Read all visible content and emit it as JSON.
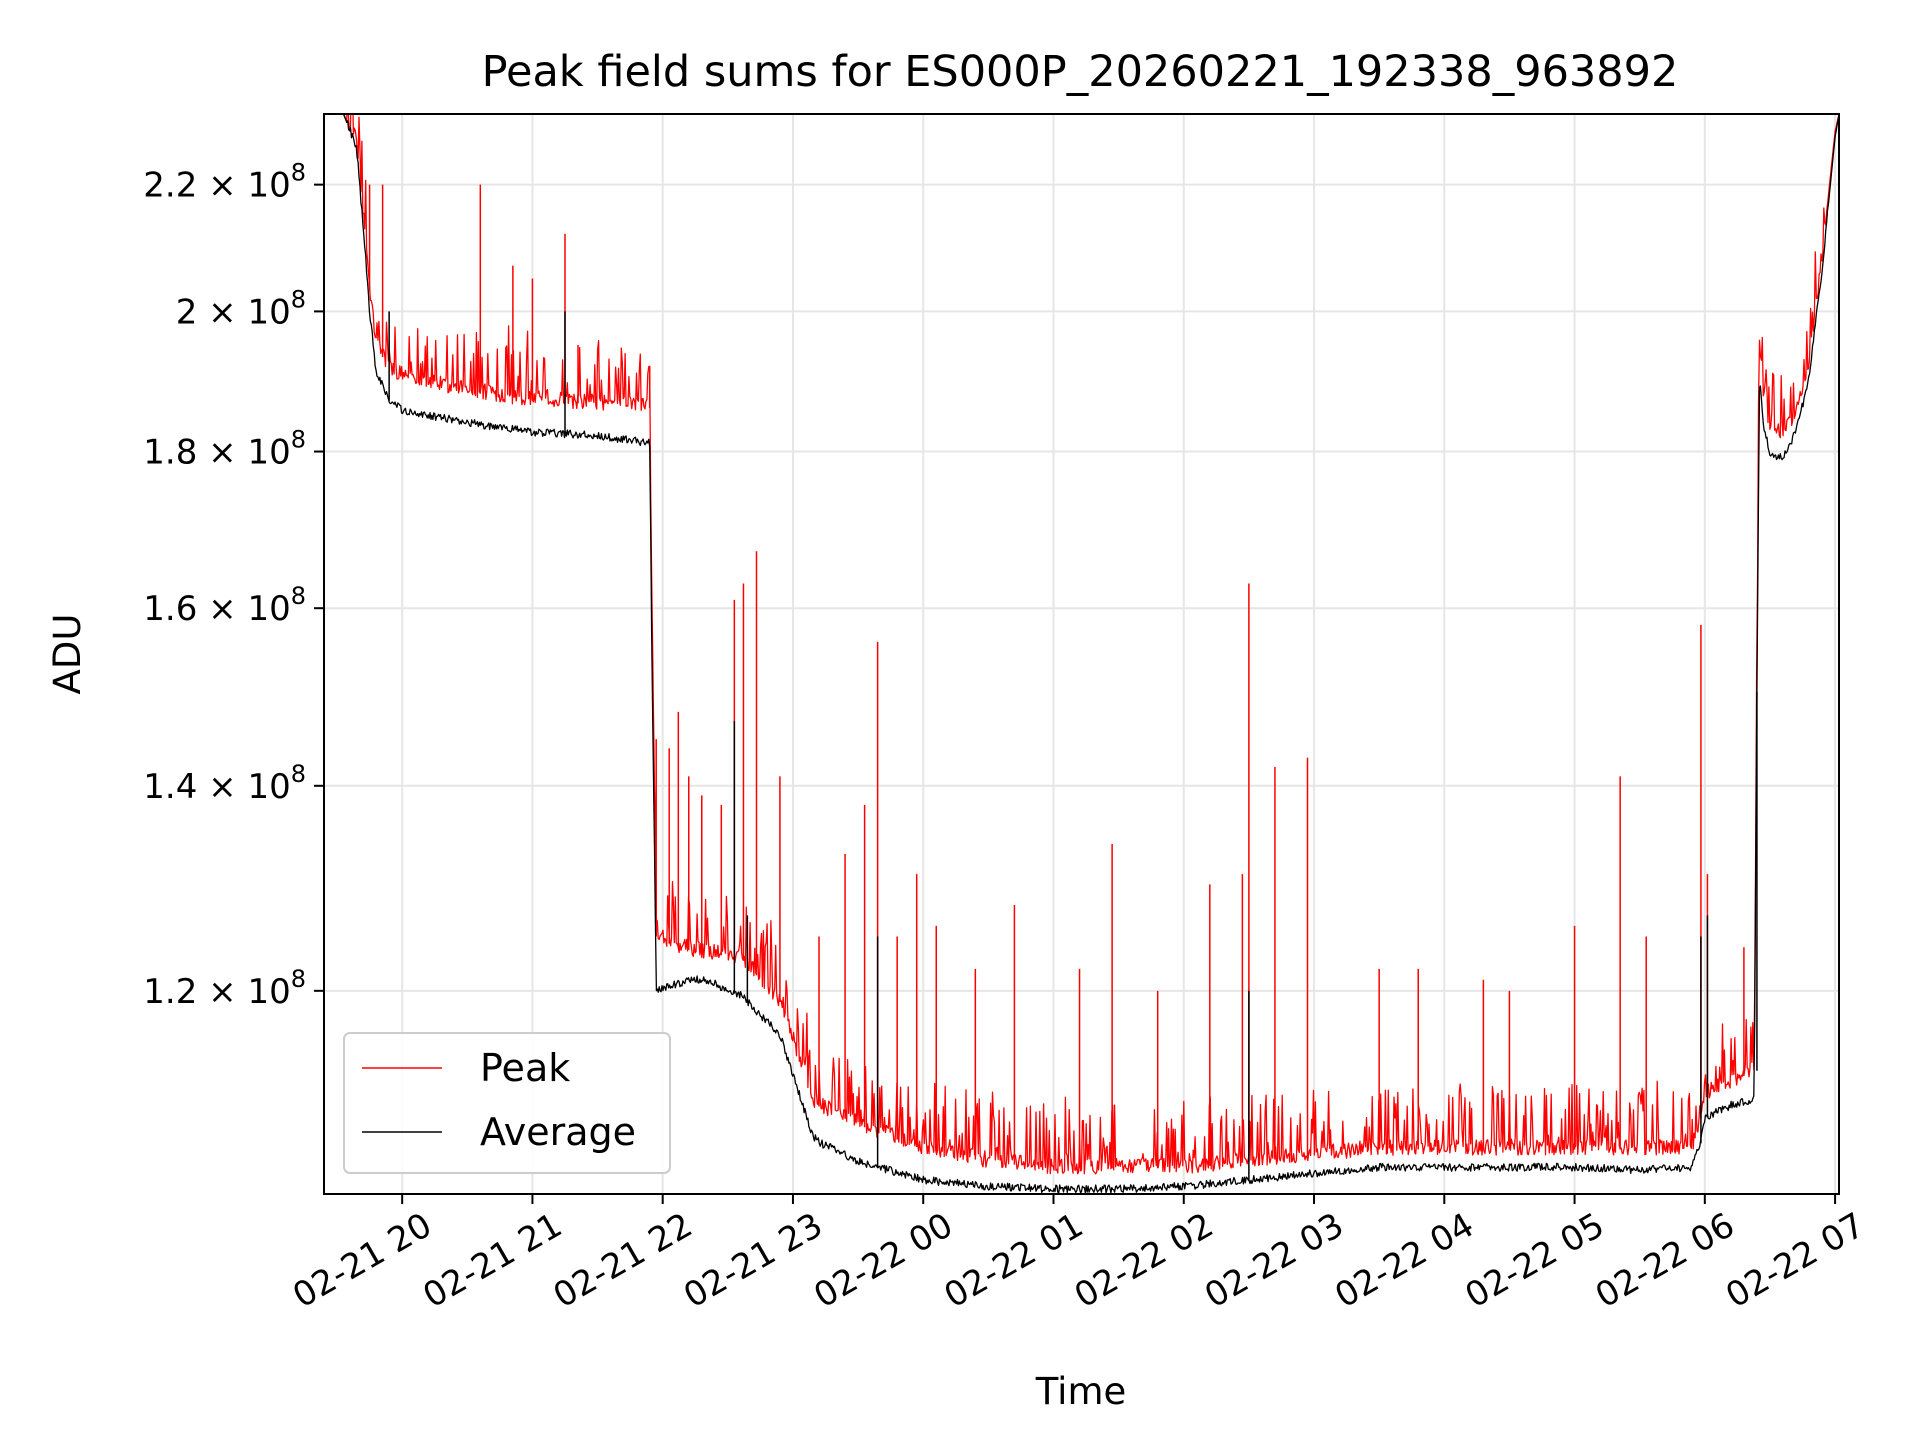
{
  "chart_data": {
    "type": "line",
    "title": "Peak field sums for ES000P_20260221_192338_963892",
    "xlabel": "Time",
    "ylabel": "ADU",
    "yscale": "log",
    "ylim": [
      103000000,
      232000000
    ],
    "xlim_hours": [
      -0.6,
      11.03
    ],
    "grid": true,
    "legend_position": "lower-left",
    "x_ticks": [
      {
        "hour": 0,
        "label": "02-21 20"
      },
      {
        "hour": 1,
        "label": "02-21 21"
      },
      {
        "hour": 2,
        "label": "02-21 22"
      },
      {
        "hour": 3,
        "label": "02-21 23"
      },
      {
        "hour": 4,
        "label": "02-22 00"
      },
      {
        "hour": 5,
        "label": "02-22 01"
      },
      {
        "hour": 6,
        "label": "02-22 02"
      },
      {
        "hour": 7,
        "label": "02-22 03"
      },
      {
        "hour": 8,
        "label": "02-22 04"
      },
      {
        "hour": 9,
        "label": "02-22 05"
      },
      {
        "hour": 10,
        "label": "02-22 06"
      },
      {
        "hour": 11,
        "label": "02-22 07"
      }
    ],
    "y_ticks": [
      {
        "value": 120000000,
        "mantissa": "1.2",
        "exponent": "8"
      },
      {
        "value": 140000000,
        "mantissa": "1.4",
        "exponent": "8"
      },
      {
        "value": 160000000,
        "mantissa": "1.6",
        "exponent": "8"
      },
      {
        "value": 180000000,
        "mantissa": "1.8",
        "exponent": "8"
      },
      {
        "value": 200000000,
        "mantissa": "2",
        "exponent": "8"
      },
      {
        "value": 220000000,
        "mantissa": "2.2",
        "exponent": "8"
      }
    ],
    "tick_times_symbol": "×",
    "tick_base": "10",
    "series": [
      {
        "name": "Peak",
        "color": "#ff0000",
        "x_hours": [
          -0.6,
          -0.45,
          -0.35,
          -0.3,
          -0.25,
          -0.2,
          -0.1,
          0.0,
          0.3,
          0.6,
          1.0,
          1.5,
          1.9,
          1.92,
          1.95,
          2.1,
          2.3,
          2.6,
          2.9,
          3.15,
          3.2,
          3.5,
          4.0,
          4.5,
          5.0,
          5.5,
          6.0,
          6.5,
          7.0,
          7.5,
          8.0,
          8.5,
          9.0,
          9.5,
          9.9,
          9.97,
          10.0,
          10.2,
          10.38,
          10.42,
          10.45,
          10.5,
          10.6,
          10.7,
          10.8,
          10.9,
          11.0,
          11.03
        ],
        "values": [
          232000000,
          232000000,
          227000000,
          215000000,
          203000000,
          195000000,
          191500000,
          190500000,
          189000000,
          188000000,
          187000000,
          186500000,
          186000000,
          158000000,
          125000000,
          124000000,
          123500000,
          123000000,
          119000000,
          110500000,
          110000000,
          108500000,
          106500000,
          105500000,
          105000000,
          105000000,
          105000000,
          105500000,
          106000000,
          106500000,
          106500000,
          106500000,
          106500000,
          106500000,
          106500000,
          109000000,
          111000000,
          112000000,
          113000000,
          196000000,
          188000000,
          183000000,
          182500000,
          185000000,
          192000000,
          208000000,
          229000000,
          232000000
        ],
        "spikes": [
          [
            -0.25,
            220000000
          ],
          [
            -0.15,
            220000000
          ],
          [
            0.6,
            220000000
          ],
          [
            0.85,
            207000000
          ],
          [
            1.0,
            205000000
          ],
          [
            1.25,
            212000000
          ],
          [
            1.35,
            195000000
          ],
          [
            1.9,
            192000000
          ],
          [
            1.95,
            145000000
          ],
          [
            2.05,
            144000000
          ],
          [
            2.12,
            148000000
          ],
          [
            2.2,
            141000000
          ],
          [
            2.3,
            139000000
          ],
          [
            2.45,
            138000000
          ],
          [
            2.55,
            161000000
          ],
          [
            2.62,
            163000000
          ],
          [
            2.72,
            167000000
          ],
          [
            2.9,
            141000000
          ],
          [
            3.2,
            125000000
          ],
          [
            3.4,
            133000000
          ],
          [
            3.55,
            138000000
          ],
          [
            3.65,
            156000000
          ],
          [
            3.8,
            125000000
          ],
          [
            3.95,
            131000000
          ],
          [
            4.1,
            126000000
          ],
          [
            4.4,
            122000000
          ],
          [
            4.7,
            128000000
          ],
          [
            5.2,
            122000000
          ],
          [
            5.45,
            134000000
          ],
          [
            5.8,
            120000000
          ],
          [
            6.2,
            130000000
          ],
          [
            6.45,
            131000000
          ],
          [
            6.5,
            163000000
          ],
          [
            6.7,
            142000000
          ],
          [
            6.95,
            143000000
          ],
          [
            7.5,
            122000000
          ],
          [
            7.8,
            122000000
          ],
          [
            8.3,
            121000000
          ],
          [
            8.5,
            120000000
          ],
          [
            9.0,
            126000000
          ],
          [
            9.35,
            141000000
          ],
          [
            9.55,
            125000000
          ],
          [
            9.97,
            158000000
          ],
          [
            10.02,
            131000000
          ],
          [
            10.3,
            124000000
          ]
        ]
      },
      {
        "name": "Average",
        "color": "#000000",
        "x_hours": [
          -0.6,
          -0.45,
          -0.35,
          -0.3,
          -0.25,
          -0.2,
          -0.1,
          0.0,
          0.3,
          0.6,
          1.0,
          1.5,
          1.9,
          1.92,
          1.95,
          2.1,
          2.3,
          2.6,
          2.9,
          3.15,
          3.2,
          3.5,
          4.0,
          4.5,
          5.0,
          5.5,
          6.0,
          6.5,
          7.0,
          7.5,
          8.0,
          8.5,
          9.0,
          9.5,
          9.9,
          9.97,
          10.0,
          10.2,
          10.38,
          10.42,
          10.45,
          10.5,
          10.6,
          10.7,
          10.8,
          10.9,
          11.0,
          11.03
        ],
        "values": [
          232000000,
          232000000,
          226000000,
          213000000,
          200000000,
          191000000,
          187000000,
          185500000,
          184500000,
          183500000,
          182500000,
          182000000,
          181000000,
          150000000,
          120000000,
          120500000,
          121000000,
          119500000,
          116000000,
          107500000,
          107000000,
          105500000,
          104000000,
          103500000,
          103300000,
          103300000,
          103500000,
          104000000,
          104500000,
          105000000,
          105000000,
          105000000,
          105000000,
          104800000,
          105000000,
          107000000,
          109000000,
          110000000,
          110500000,
          190000000,
          183500000,
          179500000,
          179000000,
          182500000,
          190000000,
          206000000,
          228000000,
          232000000
        ],
        "spikes": [
          [
            -0.1,
            200000000
          ],
          [
            1.25,
            200000000
          ],
          [
            2.55,
            147000000
          ],
          [
            2.65,
            127000000
          ],
          [
            3.65,
            125000000
          ],
          [
            6.5,
            120000000
          ],
          [
            9.97,
            125000000
          ],
          [
            10.02,
            127000000
          ],
          [
            10.4,
            113000000
          ]
        ]
      }
    ]
  }
}
